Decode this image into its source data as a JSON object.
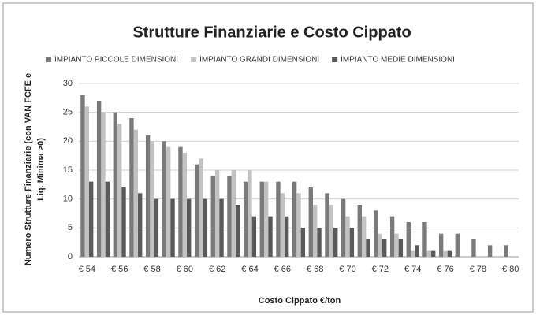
{
  "chart_data": {
    "type": "bar",
    "title": "Strutture Finanziarie e Costo Cippato",
    "xlabel": "Costo Cippato €/ton",
    "ylabel": [
      "Numero Strutture Finanziarie (con VAN FCFE e",
      "Liq. Minima >0)"
    ],
    "categories": [
      "€ 54",
      null,
      "€ 56",
      null,
      "€ 58",
      null,
      "€ 60",
      null,
      "€ 62",
      null,
      "€ 64",
      null,
      "€ 66",
      null,
      "€ 68",
      null,
      "€ 70",
      null,
      "€ 72",
      null,
      "€ 74",
      null,
      "€ 76",
      null,
      "€ 78",
      null,
      "€ 80"
    ],
    "series": [
      {
        "name": "IMPIANTO PICCOLE DIMENSIONI",
        "color": "#7a7a7a",
        "values": [
          28,
          27,
          25,
          24,
          21,
          20,
          19,
          16,
          14,
          14,
          13,
          13,
          13,
          13,
          12,
          11,
          10,
          9,
          8,
          7,
          6,
          6,
          4,
          4,
          3,
          2,
          2
        ]
      },
      {
        "name": "IMPIANTO GRANDI DIMENSIONI",
        "color": "#c2c2c2",
        "values": [
          26,
          25,
          23,
          22,
          20,
          19,
          18,
          17,
          15,
          15,
          15,
          13,
          11,
          11,
          9,
          9,
          7,
          7,
          4,
          4,
          1,
          1,
          1,
          0,
          0,
          0,
          0
        ]
      },
      {
        "name": "IMPIANTO MEDIE DIMENSIONI",
        "color": "#5a5a5a",
        "values": [
          13,
          13,
          12,
          11,
          10,
          10,
          10,
          10,
          10,
          9,
          7,
          7,
          7,
          5,
          5,
          5,
          5,
          3,
          3,
          3,
          2,
          1,
          1,
          0,
          0,
          0,
          0
        ]
      }
    ],
    "ylim": [
      0,
      30
    ],
    "yticks": [
      0,
      5,
      10,
      15,
      20,
      25,
      30
    ],
    "grid": true,
    "legend": "top"
  }
}
